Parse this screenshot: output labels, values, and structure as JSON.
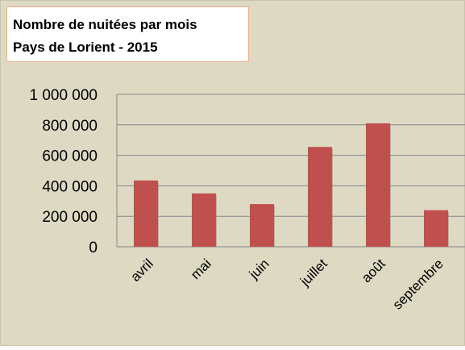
{
  "chart_data": {
    "type": "bar",
    "title": "Nombre de nuitées par mois",
    "subtitle": "Pays de Lorient - 2015",
    "categories": [
      "avril",
      "mai",
      "juin",
      "juillet",
      "août",
      "septembre"
    ],
    "values": [
      435000,
      350000,
      280000,
      655000,
      810000,
      240000
    ],
    "color": "#c0504d",
    "ylim": [
      0,
      1000000
    ],
    "yticks": [
      0,
      {
        "value": 200000,
        "label": "200 000"
      },
      {
        "value": 400000,
        "label": "400 000"
      },
      {
        "value": 600000,
        "label": "600 000"
      },
      {
        "value": 800000,
        "label": "800 000"
      },
      {
        "value": 1000000,
        "label": "1 000 000"
      }
    ],
    "grid": true
  }
}
